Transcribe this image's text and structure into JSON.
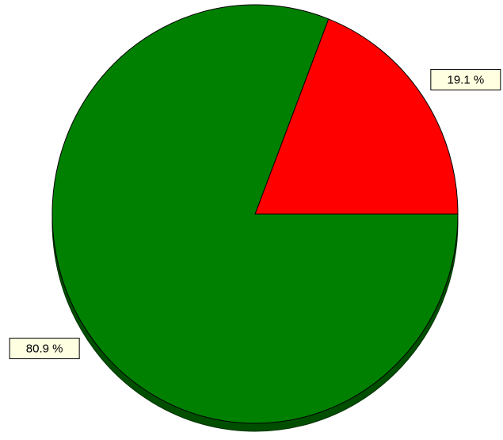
{
  "chart_data": {
    "type": "pie",
    "values": [
      19.1,
      80.9
    ],
    "value_labels": [
      "19.1 %",
      "80.9 %"
    ],
    "colors": [
      "#ff0000",
      "#008000"
    ]
  }
}
